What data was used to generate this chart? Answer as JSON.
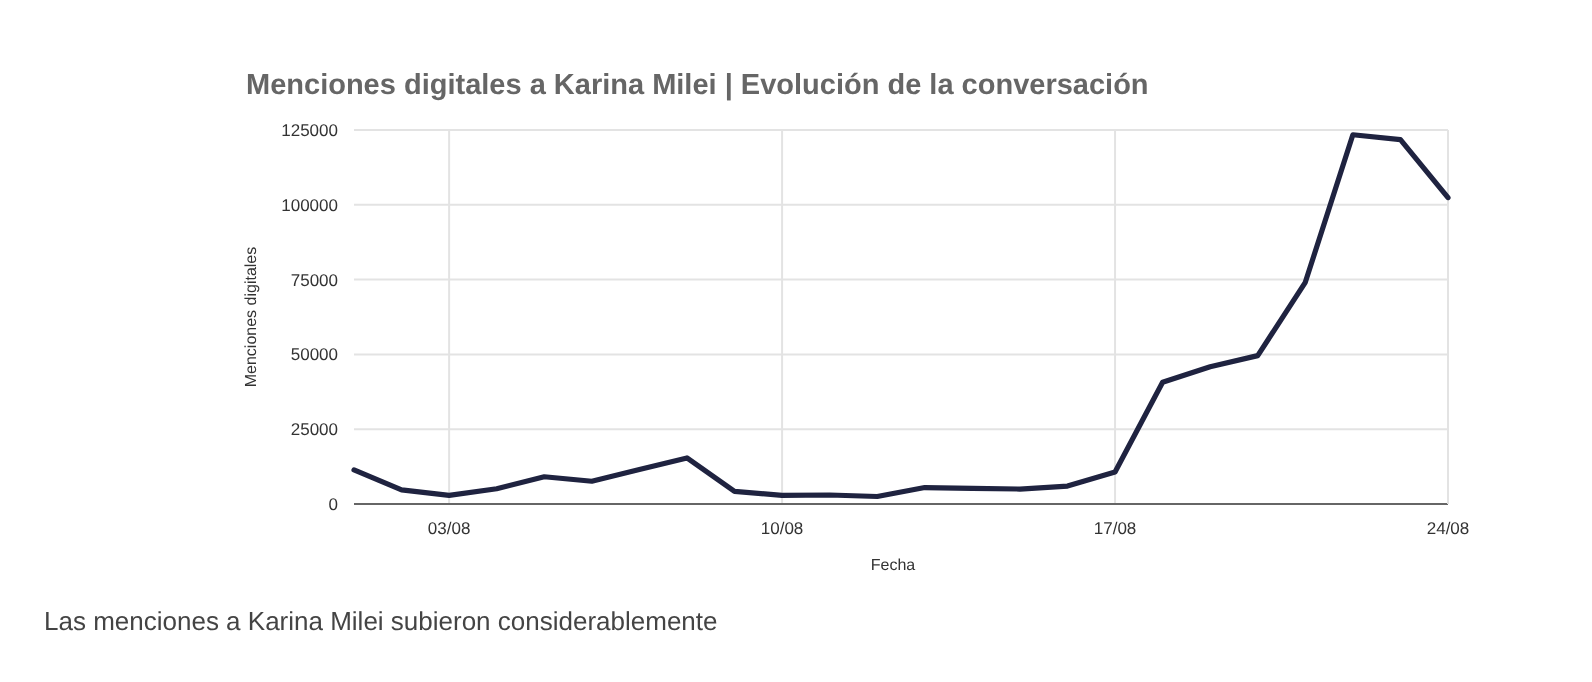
{
  "chart_data": {
    "type": "line",
    "title": "Menciones digitales a Karina Milei | Evolución de la conversación",
    "xlabel": "Fecha",
    "ylabel": "Menciones digitales",
    "x": [
      "--08-01",
      "--08-02",
      "--08-03",
      "--08-04",
      "--08-05",
      "--08-06",
      "--08-07",
      "--08-08",
      "--08-09",
      "--08-10",
      "--08-11",
      "--08-12",
      "--08-13",
      "--08-14",
      "--08-15",
      "--08-16",
      "--08-17",
      "--08-18",
      "--08-19",
      "--08-20",
      "--08-21",
      "--08-22",
      "--08-23",
      "--08-24"
    ],
    "series": [
      {
        "color": "#1f2340",
        "values": [
          11400,
          4700,
          2900,
          5100,
          9100,
          7600,
          11500,
          15400,
          4200,
          2900,
          3000,
          2500,
          5500,
          5200,
          5000,
          6000,
          10700,
          40700,
          45900,
          49600,
          74100,
          123400,
          121800,
          102400
        ]
      }
    ],
    "xlim": [
      "--08-01",
      "--08-24"
    ],
    "xticks": [
      {
        "value": "--08-03",
        "label": "03/08"
      },
      {
        "value": "--08-10",
        "label": "10/08"
      },
      {
        "value": "--08-17",
        "label": "17/08"
      },
      {
        "value": "--08-24",
        "label": "24/08"
      }
    ],
    "ylim": [
      0,
      125000
    ],
    "yticks": [
      0,
      25000,
      50000,
      75000,
      100000,
      125000
    ],
    "grid": true,
    "marker": "none",
    "line_style": "solid",
    "annotations": [
      "Las menciones a Karina Milei subieron considerablemente"
    ]
  }
}
